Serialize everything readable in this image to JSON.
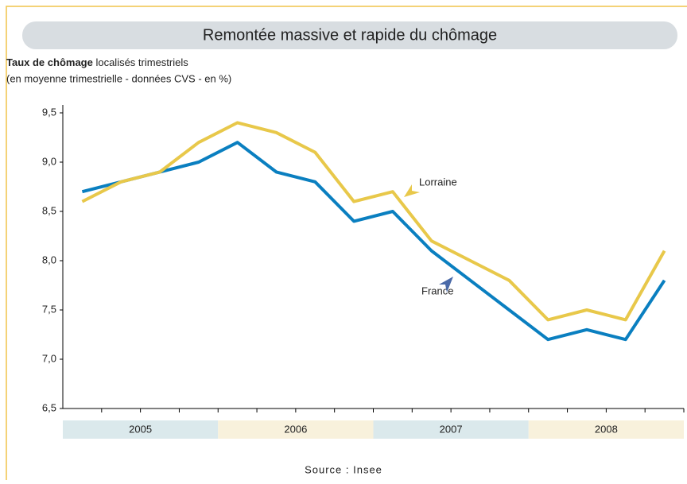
{
  "chart_data": {
    "type": "line",
    "title": "Remontée massive et rapide du chômage",
    "subtitle_bold": "Taux de chômage",
    "subtitle": " localisés trimestriels",
    "subtitle2": "(en moyenne trimestrielle - données CVS - en %)",
    "source": "Source : Insee",
    "years": [
      "2005",
      "2006",
      "2007",
      "2008"
    ],
    "year_colors": [
      "#dbe9ec",
      "#f8f1dc",
      "#dbe9ec",
      "#f8f1dc"
    ],
    "series": [
      {
        "name": "France",
        "color": "#0a7fc0",
        "values": [
          8.7,
          8.8,
          8.9,
          9.0,
          9.2,
          8.9,
          8.8,
          8.4,
          8.5,
          8.1,
          7.8,
          7.5,
          7.2,
          7.3,
          7.2,
          7.8
        ]
      },
      {
        "name": "Lorraine",
        "color": "#e8c84a",
        "values": [
          8.6,
          8.8,
          8.9,
          9.2,
          9.4,
          9.3,
          9.1,
          8.6,
          8.7,
          8.2,
          8.0,
          7.8,
          7.4,
          7.5,
          7.4,
          8.1
        ]
      }
    ],
    "ylim": [
      6.5,
      9.5
    ],
    "yticks": [
      {
        "value": 6.5,
        "label": "6,5"
      },
      {
        "value": 7.0,
        "label": "7,0"
      },
      {
        "value": 7.5,
        "label": "7,5"
      },
      {
        "value": 8.0,
        "label": "8,0"
      },
      {
        "value": 8.5,
        "label": "8,5"
      },
      {
        "value": 9.0,
        "label": "9,0"
      },
      {
        "value": 9.5,
        "label": "9,5"
      }
    ]
  }
}
